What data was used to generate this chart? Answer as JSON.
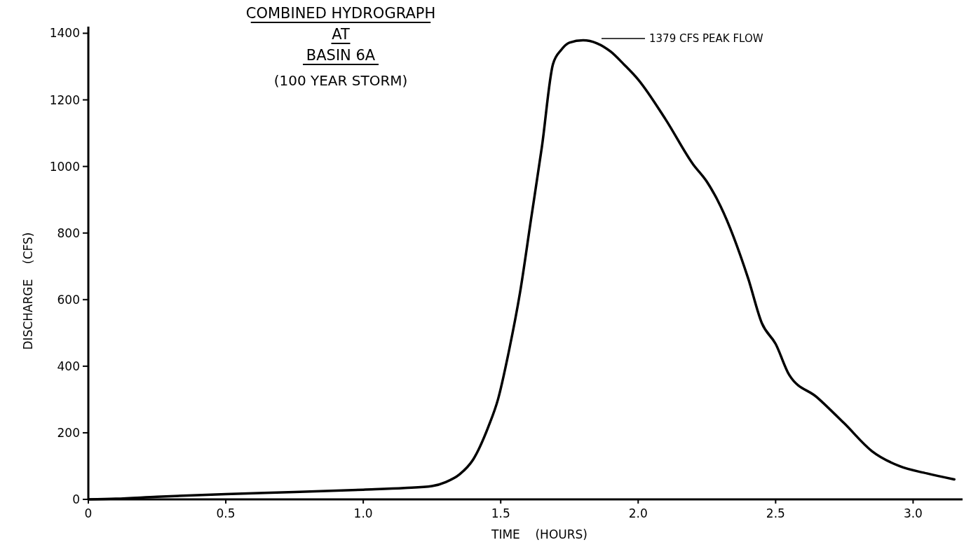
{
  "chart_data": {
    "type": "line",
    "title": "COMBINED HYDROGRAPH\nAT\nBASIN 6A",
    "subtitle": "(100 YEAR STORM)",
    "xlabel": "TIME    (HOURS)",
    "ylabel": "DISCHARGE    (CFS)",
    "x": [
      0,
      0.1,
      0.25,
      0.5,
      0.75,
      1.0,
      1.15,
      1.25,
      1.3,
      1.35,
      1.4,
      1.455,
      1.49,
      1.53,
      1.57,
      1.61,
      1.65,
      1.69,
      1.72,
      1.75,
      1.8,
      1.85,
      1.9,
      1.95,
      2.0,
      2.1,
      2.2,
      2.25,
      2.3,
      2.4,
      2.45,
      2.5,
      2.55,
      2.65,
      2.75,
      2.85,
      2.95,
      3.05,
      3.15
    ],
    "series": [
      {
        "color": "#000000",
        "values": [
          0,
          2,
          8,
          16,
          22,
          29,
          34,
          40,
          52,
          75,
          120,
          218,
          300,
          446,
          620,
          840,
          1060,
          1307,
          1350,
          1372,
          1379,
          1370,
          1345,
          1305,
          1261,
          1141,
          1006,
          954,
          880,
          664,
          529,
          467,
          373,
          307,
          228,
          145,
          100,
          78,
          60
        ]
      }
    ],
    "xlim": [
      0,
      3.18
    ],
    "xticks": [
      0,
      {
        "value": 0.5,
        "label": "0.5"
      },
      {
        "value": 1,
        "label": "1.0"
      },
      {
        "value": 1.5,
        "label": "1.5"
      },
      {
        "value": 2,
        "label": "2.0"
      },
      {
        "value": 2.5,
        "label": "2.5"
      },
      {
        "value": 3,
        "label": "3.0"
      }
    ],
    "ylim": [
      0,
      1420
    ],
    "yticks": [
      0,
      200,
      400,
      600,
      800,
      1000,
      1200,
      1400
    ],
    "annotations": [
      "1379 CFS PEAK FLOW"
    ],
    "line_style": "solid",
    "marker": "none",
    "grid": false
  }
}
